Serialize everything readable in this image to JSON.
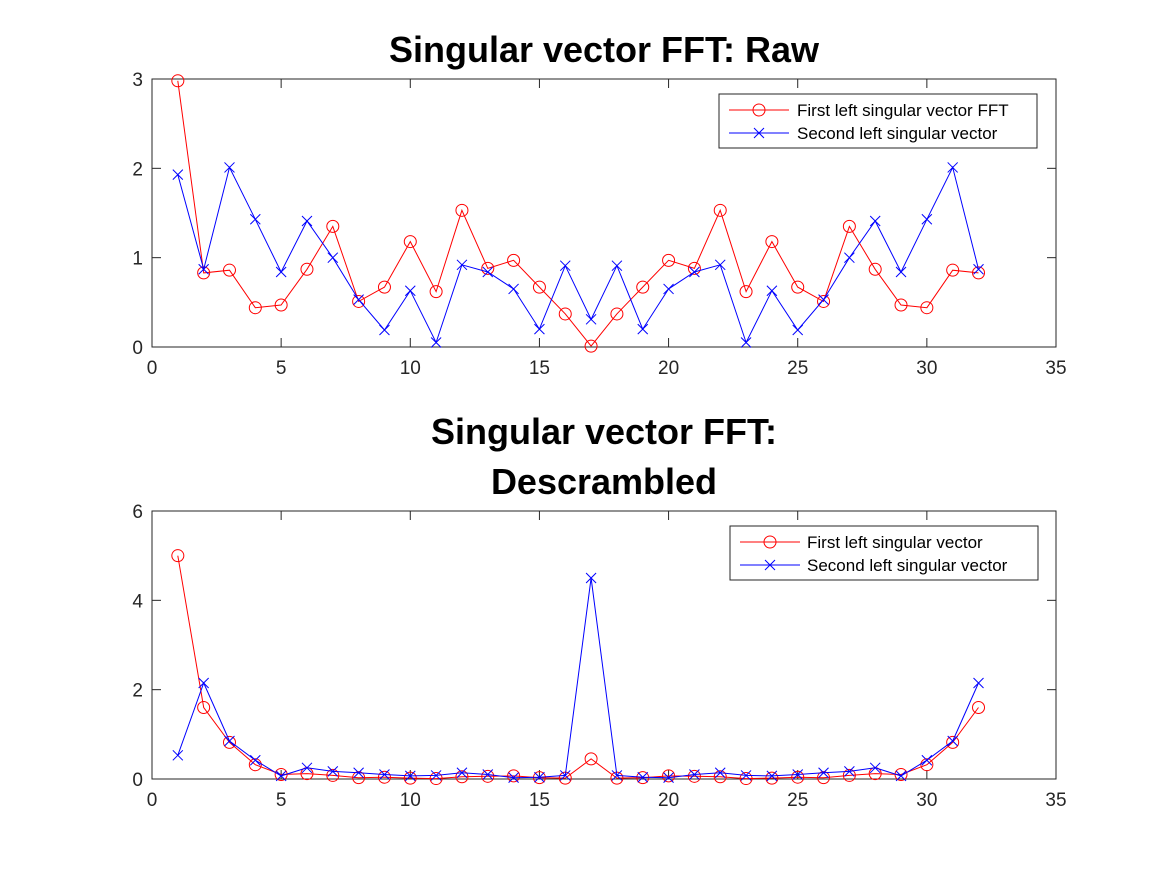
{
  "colors": {
    "series1": "#ff0000",
    "series2": "#0000ff",
    "axis": "#262626"
  },
  "chart_data": [
    {
      "type": "line",
      "title": "Singular vector FFT: Raw",
      "title_lines": [
        "Singular vector FFT: Raw"
      ],
      "xlabel": "",
      "ylabel": "",
      "xlim": [
        0,
        35
      ],
      "ylim": [
        0,
        3
      ],
      "xticks": [
        0,
        5,
        10,
        15,
        20,
        25,
        30,
        35
      ],
      "yticks": [
        0,
        1,
        2,
        3
      ],
      "legend_position": "top-right",
      "grid": false,
      "x": [
        1,
        2,
        3,
        4,
        5,
        6,
        7,
        8,
        9,
        10,
        11,
        12,
        13,
        14,
        15,
        16,
        17,
        18,
        19,
        20,
        21,
        22,
        23,
        24,
        25,
        26,
        27,
        28,
        29,
        30,
        31,
        32
      ],
      "series": [
        {
          "name": "First left singular vector FFT",
          "color": "#ff0000",
          "marker": "circle",
          "values": [
            2.98,
            0.83,
            0.86,
            0.44,
            0.47,
            0.87,
            1.35,
            0.51,
            0.67,
            1.18,
            0.62,
            1.53,
            0.88,
            0.97,
            0.67,
            0.37,
            0.01,
            0.37,
            0.67,
            0.97,
            0.88,
            1.53,
            0.62,
            1.18,
            0.67,
            0.51,
            1.35,
            0.87,
            0.47,
            0.44,
            0.86,
            0.83
          ]
        },
        {
          "name": "Second left singular vector",
          "color": "#0000ff",
          "marker": "x",
          "values": [
            1.93,
            0.87,
            2.01,
            1.43,
            0.84,
            1.41,
            1.0,
            0.53,
            0.19,
            0.63,
            0.05,
            0.92,
            0.84,
            0.65,
            0.2,
            0.91,
            0.31,
            0.91,
            0.2,
            0.65,
            0.84,
            0.92,
            0.05,
            0.63,
            0.19,
            0.53,
            1.0,
            1.41,
            0.84,
            1.43,
            2.01,
            0.87
          ]
        }
      ]
    },
    {
      "type": "line",
      "title": "Singular vector FFT: Descrambled",
      "title_lines": [
        "Singular vector FFT:",
        "Descrambled"
      ],
      "xlabel": "",
      "ylabel": "",
      "xlim": [
        0,
        35
      ],
      "ylim": [
        0,
        6
      ],
      "xticks": [
        0,
        5,
        10,
        15,
        20,
        25,
        30,
        35
      ],
      "yticks": [
        0,
        2,
        4,
        6
      ],
      "legend_position": "top-right",
      "grid": false,
      "x": [
        1,
        2,
        3,
        4,
        5,
        6,
        7,
        8,
        9,
        10,
        11,
        12,
        13,
        14,
        15,
        16,
        17,
        18,
        19,
        20,
        21,
        22,
        23,
        24,
        25,
        26,
        27,
        28,
        29,
        30,
        31,
        32
      ],
      "series": [
        {
          "name": "First left singular vector",
          "color": "#ff0000",
          "marker": "circle",
          "values": [
            5.0,
            1.6,
            0.82,
            0.32,
            0.1,
            0.12,
            0.08,
            0.03,
            0.04,
            0.02,
            0.01,
            0.05,
            0.06,
            0.07,
            0.03,
            0.02,
            0.45,
            0.02,
            0.03,
            0.07,
            0.06,
            0.05,
            0.01,
            0.02,
            0.04,
            0.03,
            0.08,
            0.12,
            0.1,
            0.32,
            0.82,
            1.6
          ]
        },
        {
          "name": "Second left singular vector",
          "color": "#0000ff",
          "marker": "x",
          "values": [
            0.53,
            2.15,
            0.85,
            0.42,
            0.07,
            0.25,
            0.17,
            0.14,
            0.1,
            0.07,
            0.08,
            0.14,
            0.1,
            0.03,
            0.04,
            0.08,
            4.5,
            0.08,
            0.04,
            0.03,
            0.1,
            0.14,
            0.08,
            0.07,
            0.1,
            0.14,
            0.17,
            0.25,
            0.07,
            0.42,
            0.85,
            2.15
          ]
        }
      ]
    }
  ]
}
